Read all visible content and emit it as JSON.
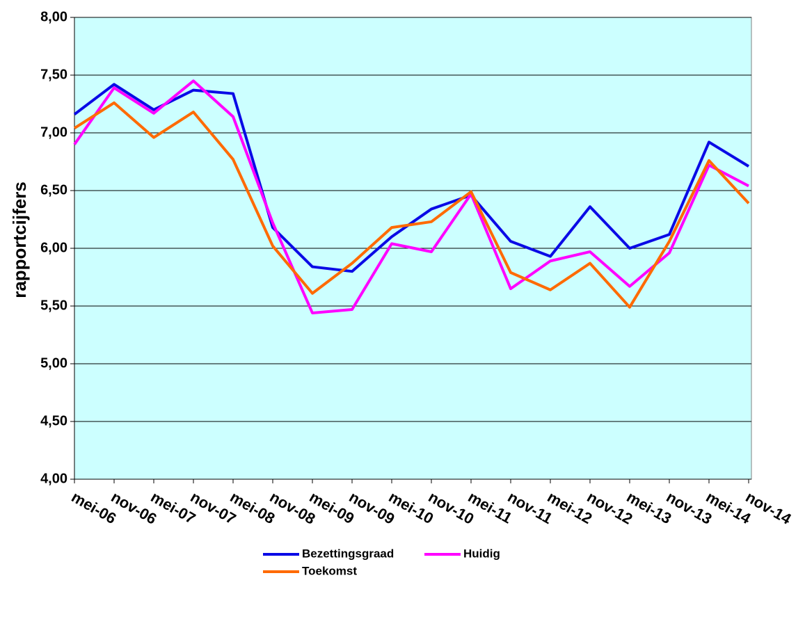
{
  "chart_data": {
    "type": "line",
    "y_label": "rapportcijfers",
    "categories": [
      "mei-06",
      "nov-06",
      "mei-07",
      "nov-07",
      "mei-08",
      "nov-08",
      "mei-09",
      "nov-09",
      "mei-10",
      "nov-10",
      "mei-11",
      "nov-11",
      "mei-12",
      "nov-12",
      "mei-13",
      "nov-13",
      "mei-14",
      "nov-14"
    ],
    "series": [
      {
        "name": "Bezettingsgraad",
        "color": "#0a0ae6",
        "values": [
          7.16,
          7.42,
          7.2,
          7.37,
          7.34,
          6.18,
          5.84,
          5.8,
          6.1,
          6.34,
          6.46,
          6.06,
          5.93,
          6.36,
          6.0,
          6.12,
          6.92,
          6.71
        ]
      },
      {
        "name": "Huidig",
        "color": "#ff00ff",
        "values": [
          6.9,
          7.39,
          7.17,
          7.45,
          7.14,
          6.22,
          5.44,
          5.47,
          6.04,
          5.97,
          6.47,
          5.65,
          5.89,
          5.97,
          5.67,
          5.96,
          6.72,
          6.54
        ]
      },
      {
        "name": "Toekomst",
        "color": "#ff6a00",
        "values": [
          7.04,
          7.26,
          6.96,
          7.18,
          6.77,
          6.02,
          5.61,
          5.87,
          6.18,
          6.23,
          6.49,
          5.79,
          5.64,
          5.87,
          5.49,
          6.06,
          6.76,
          6.39
        ]
      }
    ],
    "ylim": [
      4,
      8
    ],
    "yticks": [
      {
        "value": 4,
        "label": "4,00"
      },
      {
        "value": 4.5,
        "label": "4,50"
      },
      {
        "value": 5,
        "label": "5,00"
      },
      {
        "value": 5.5,
        "label": "5,50"
      },
      {
        "value": 6,
        "label": "6,00"
      },
      {
        "value": 6.5,
        "label": "6,50"
      },
      {
        "value": 7,
        "label": "7,00"
      },
      {
        "value": 7.5,
        "label": "7,50"
      },
      {
        "value": 8,
        "label": "8,00"
      }
    ],
    "grid": true,
    "background": "#ccffff",
    "legend": "bottom"
  }
}
